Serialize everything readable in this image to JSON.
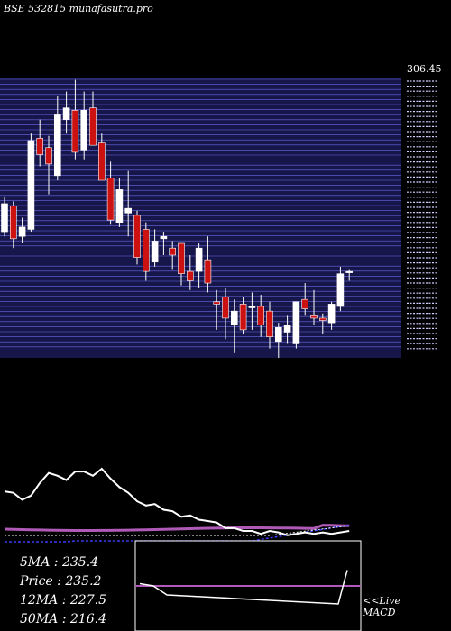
{
  "header": {
    "title": "BSE 532815 munafasutra.pro"
  },
  "stats": [
    {
      "label": "5MA",
      "value": "235.4"
    },
    {
      "label": "Price",
      "value": "235.2"
    },
    {
      "label": "12MA",
      "value": "227.5"
    },
    {
      "label": "50MA",
      "value": "216.4"
    }
  ],
  "footer": {
    "line1": "<<Live",
    "line2": "MACD"
  },
  "colors": {
    "background": "#000000",
    "panel": "#16164a",
    "grid": "#6a6ae6",
    "up": "#ffffff",
    "down": "#cc1111",
    "ma_short": "#ffffff",
    "ma_long": "#b05ab8",
    "ma_mid": "#3a3af0"
  },
  "chart_data": {
    "type": "candlestick",
    "price_label": "306.45",
    "candles": [
      {
        "o": 240,
        "h": 255,
        "l": 238,
        "c": 252
      },
      {
        "o": 251,
        "h": 253,
        "l": 233,
        "c": 237
      },
      {
        "o": 238,
        "h": 246,
        "l": 235,
        "c": 242
      },
      {
        "o": 241,
        "h": 282,
        "l": 240,
        "c": 279
      },
      {
        "o": 280,
        "h": 288,
        "l": 268,
        "c": 273
      },
      {
        "o": 276,
        "h": 281,
        "l": 256,
        "c": 269
      },
      {
        "o": 264,
        "h": 298,
        "l": 262,
        "c": 290
      },
      {
        "o": 288,
        "h": 300,
        "l": 282,
        "c": 293
      },
      {
        "o": 292,
        "h": 305,
        "l": 271,
        "c": 274
      },
      {
        "o": 275,
        "h": 300,
        "l": 271,
        "c": 292
      },
      {
        "o": 293,
        "h": 300,
        "l": 277,
        "c": 277
      },
      {
        "o": 278,
        "h": 282,
        "l": 262,
        "c": 262
      },
      {
        "o": 263,
        "h": 270,
        "l": 243,
        "c": 245
      },
      {
        "o": 244,
        "h": 263,
        "l": 242,
        "c": 258
      },
      {
        "o": 248,
        "h": 266,
        "l": 238,
        "c": 250
      },
      {
        "o": 247,
        "h": 249,
        "l": 226,
        "c": 229
      },
      {
        "o": 241,
        "h": 244,
        "l": 219,
        "c": 223
      },
      {
        "o": 227,
        "h": 241,
        "l": 225,
        "c": 236
      },
      {
        "o": 237,
        "h": 240,
        "l": 230,
        "c": 238
      },
      {
        "o": 233,
        "h": 236,
        "l": 224,
        "c": 230
      },
      {
        "o": 235,
        "h": 234,
        "l": 217,
        "c": 222
      },
      {
        "o": 223,
        "h": 230,
        "l": 215,
        "c": 219
      },
      {
        "o": 223,
        "h": 235,
        "l": 216,
        "c": 233
      },
      {
        "o": 228,
        "h": 238,
        "l": 214,
        "c": 218
      },
      {
        "o": 210,
        "h": 215,
        "l": 198,
        "c": 209
      },
      {
        "o": 212,
        "h": 216,
        "l": 194,
        "c": 203
      },
      {
        "o": 200,
        "h": 211,
        "l": 188,
        "c": 206
      },
      {
        "o": 209,
        "h": 212,
        "l": 196,
        "c": 198
      },
      {
        "o": 208,
        "h": 214,
        "l": 198,
        "c": 208
      },
      {
        "o": 208,
        "h": 213,
        "l": 195,
        "c": 200
      },
      {
        "o": 206,
        "h": 210,
        "l": 190,
        "c": 195
      },
      {
        "o": 193,
        "h": 201,
        "l": 186,
        "c": 199
      },
      {
        "o": 197,
        "h": 204,
        "l": 192,
        "c": 200
      },
      {
        "o": 192,
        "h": 209,
        "l": 190,
        "c": 210
      },
      {
        "o": 211,
        "h": 218,
        "l": 204,
        "c": 207
      },
      {
        "o": 204,
        "h": 215,
        "l": 200,
        "c": 203
      },
      {
        "o": 203,
        "h": 205,
        "l": 196,
        "c": 202
      },
      {
        "o": 201,
        "h": 210,
        "l": 198,
        "c": 209
      },
      {
        "o": 208,
        "h": 225,
        "l": 206,
        "c": 222
      },
      {
        "o": 223,
        "h": 224,
        "l": 219,
        "c": 223
      }
    ],
    "indicator_line": [
      250,
      249,
      244,
      247,
      256,
      263,
      261,
      258,
      264,
      264,
      261,
      266,
      259,
      253,
      249,
      243,
      240,
      241,
      237,
      236,
      232,
      233,
      230,
      229,
      228,
      224,
      224,
      222,
      222,
      220,
      222,
      221,
      219,
      220,
      221,
      220,
      221,
      220,
      221,
      222
    ],
    "macd_line": [
      213,
      212,
      208,
      204,
      219
    ]
  }
}
